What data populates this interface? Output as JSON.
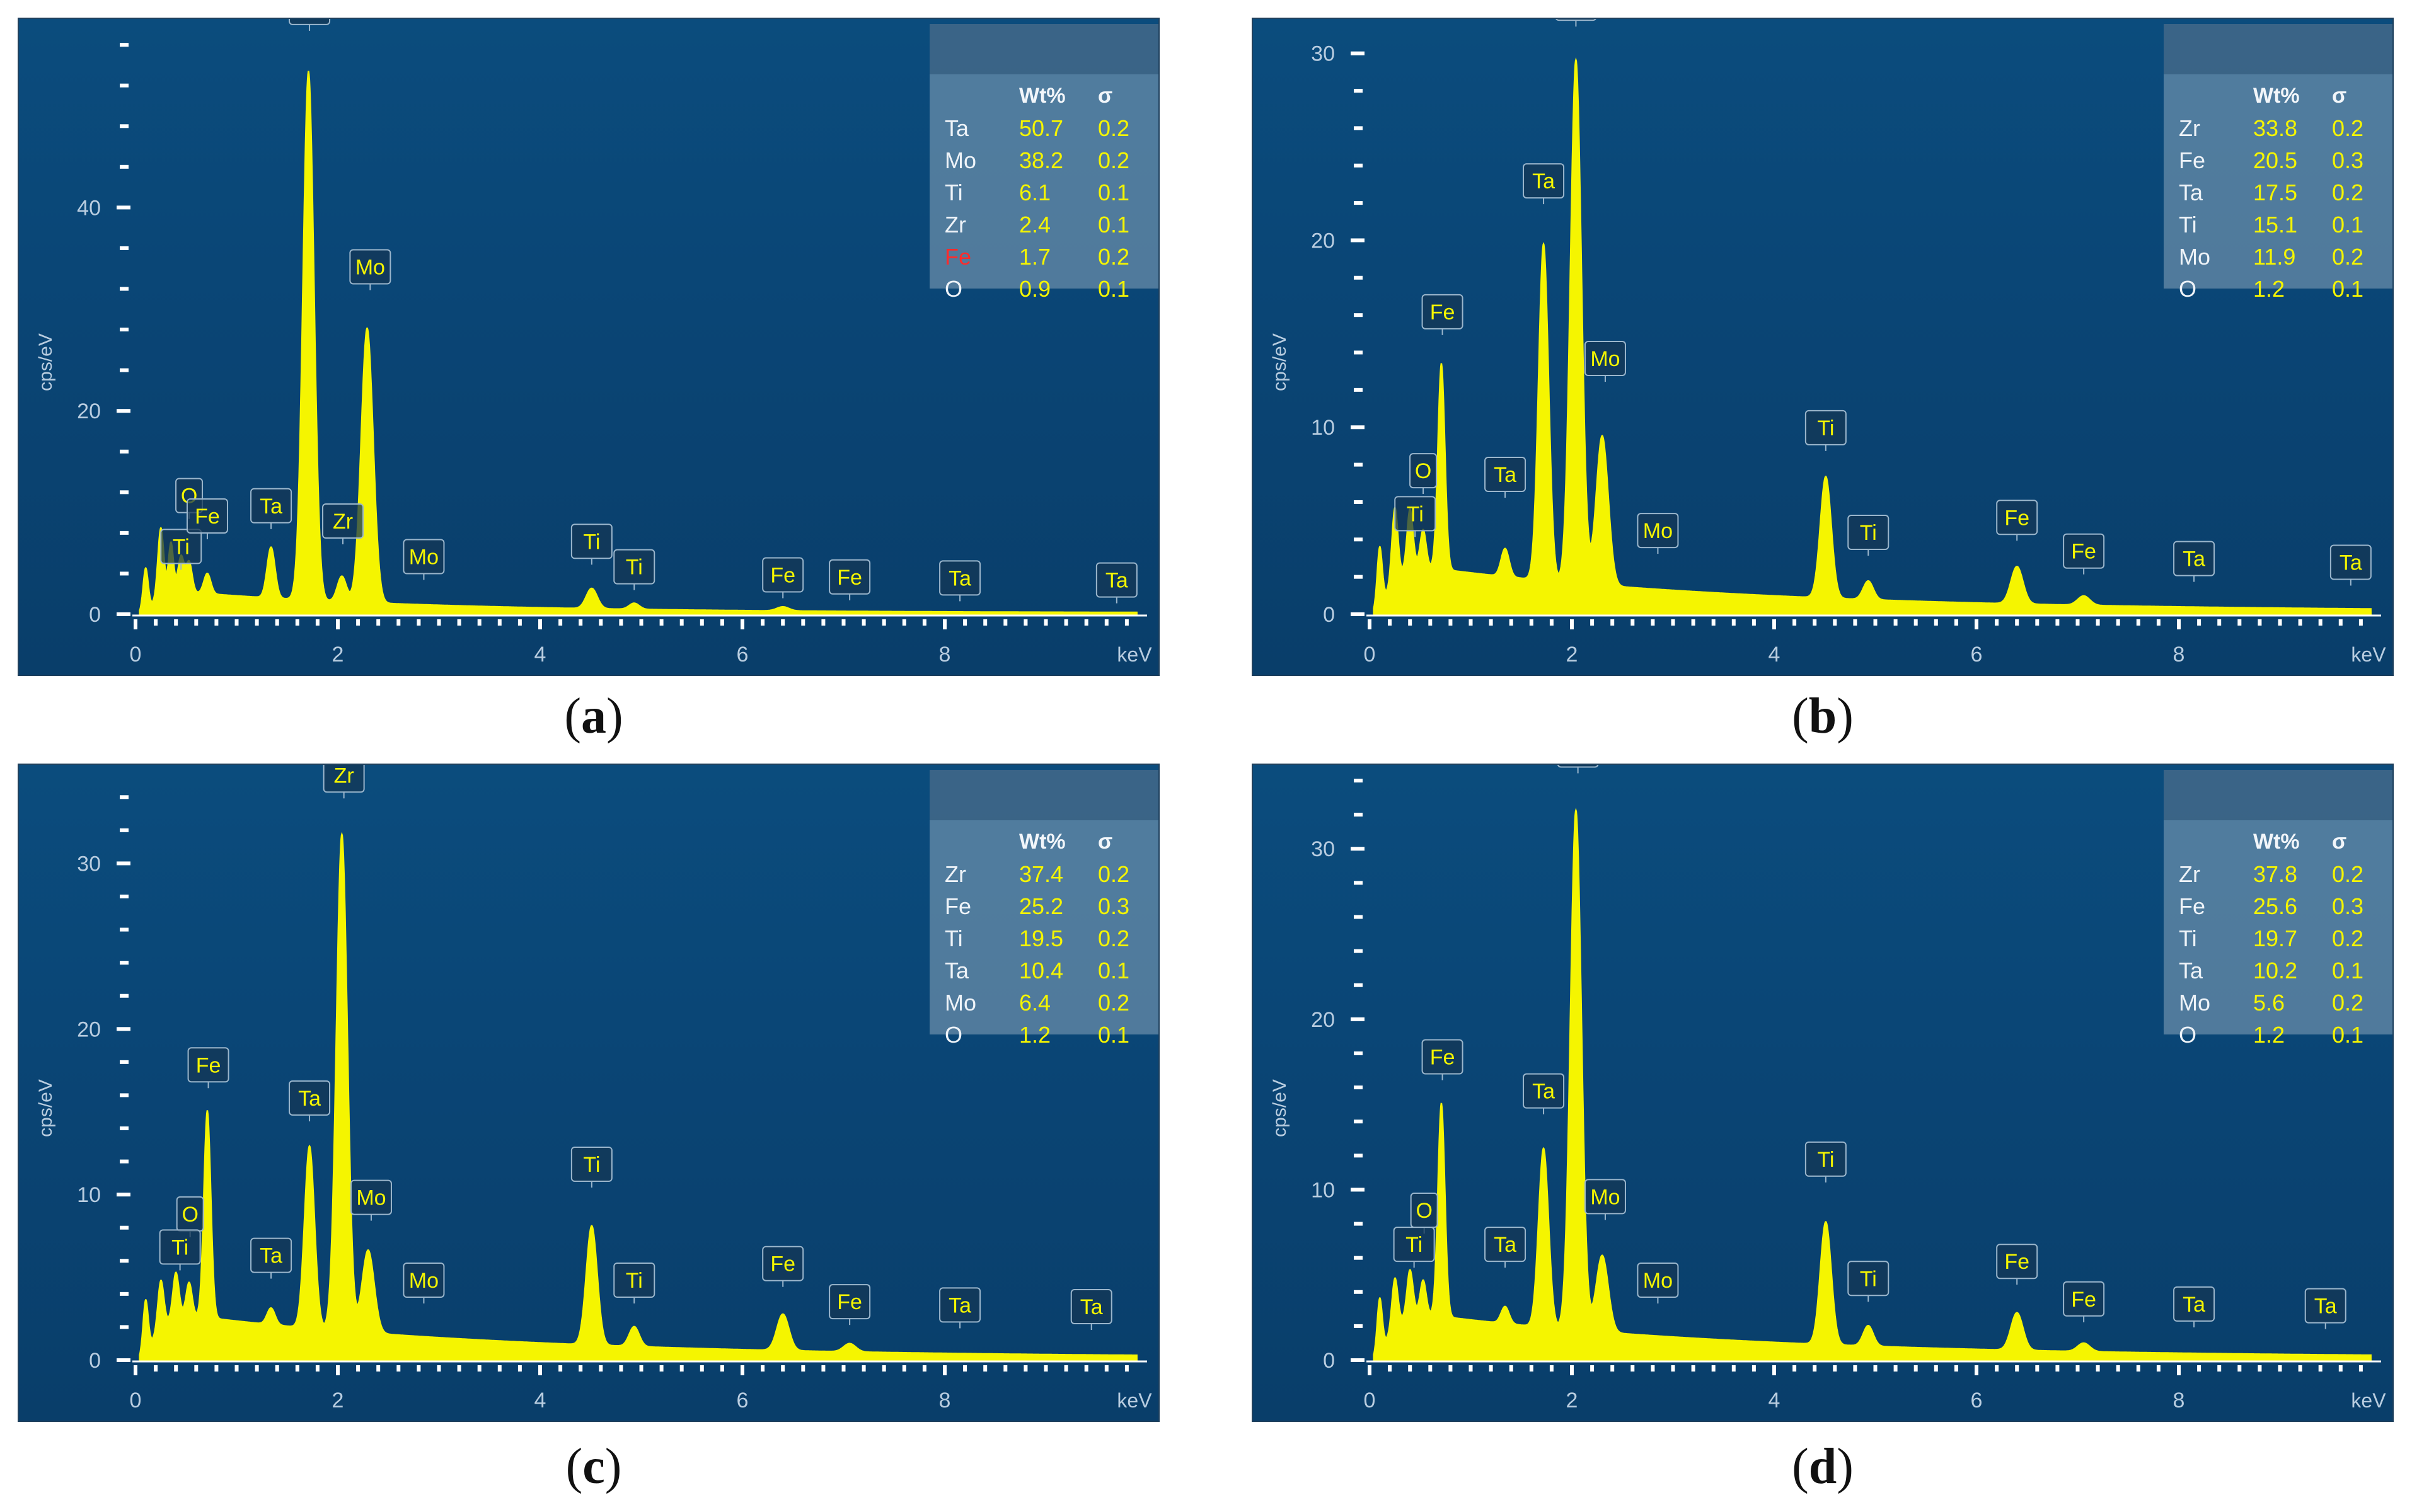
{
  "colors": {
    "panel": "#0a4575",
    "spectrum": "#f5f500",
    "axis_text": "#b9cde0",
    "element_warning": "#ff2b2b"
  },
  "chart_data": [
    {
      "id": "a",
      "type": "area",
      "caption": "a",
      "xlabel": "keV",
      "ylabel": "cps/eV",
      "xlim": [
        0,
        10
      ],
      "ylim": [
        0,
        57
      ],
      "yticks": [
        0,
        20,
        40
      ],
      "xticks": [
        0,
        2,
        4,
        6,
        8
      ],
      "background": 2.5,
      "decay": 0.4,
      "peaks": [
        [
          0.1,
          4,
          0.025
        ],
        [
          0.25,
          7,
          0.03
        ],
        [
          0.35,
          5,
          0.025
        ],
        [
          0.45,
          3.5,
          0.03
        ],
        [
          0.53,
          3,
          0.03
        ],
        [
          0.71,
          2,
          0.035
        ],
        [
          1.34,
          5,
          0.04
        ],
        [
          1.71,
          52,
          0.055
        ],
        [
          2.04,
          2.5,
          0.045
        ],
        [
          2.29,
          27,
          0.06
        ],
        [
          4.51,
          2,
          0.055
        ],
        [
          4.93,
          0.6,
          0.05
        ],
        [
          6.4,
          0.4,
          0.06
        ]
      ],
      "labels": [
        [
          "O",
          0.53,
          9.5
        ],
        [
          "Ti",
          0.45,
          4.5
        ],
        [
          "Fe",
          0.71,
          7.5
        ],
        [
          "Ta",
          1.34,
          8.5
        ],
        [
          "Ta",
          1.72,
          57.5
        ],
        [
          "Zr",
          2.05,
          7
        ],
        [
          "Mo",
          2.32,
          32
        ],
        [
          "Mo",
          2.85,
          3.5
        ],
        [
          "Ti",
          4.51,
          5
        ],
        [
          "Ti",
          4.93,
          2.5
        ],
        [
          "Fe",
          6.4,
          1.7
        ],
        [
          "Fe",
          7.06,
          1.5
        ],
        [
          "Ta",
          8.15,
          1.4
        ],
        [
          "Ta",
          9.7,
          1.2
        ]
      ],
      "table": {
        "headers": [
          "",
          "Wt%",
          "σ"
        ],
        "rows": [
          [
            "Ta",
            "50.7",
            "0.2"
          ],
          [
            "Mo",
            "38.2",
            "0.2"
          ],
          [
            "Ti",
            "6.1",
            "0.1"
          ],
          [
            "Zr",
            "2.4",
            "0.1"
          ],
          [
            "Fe",
            "1.7",
            "0.2"
          ],
          [
            "O",
            "0.9",
            "0.1"
          ]
        ],
        "warn_row": 4
      }
    },
    {
      "id": "b",
      "type": "area",
      "caption": "b",
      "xlabel": "keV",
      "ylabel": "cps/eV",
      "xlim": [
        0,
        10
      ],
      "ylim": [
        0,
        31
      ],
      "yticks": [
        0,
        10,
        20,
        30
      ],
      "xticks": [
        0,
        2,
        4,
        6,
        8
      ],
      "background": 2.8,
      "decay": 0.3,
      "peaks": [
        [
          0.1,
          3,
          0.025
        ],
        [
          0.25,
          4,
          0.03
        ],
        [
          0.4,
          3,
          0.03
        ],
        [
          0.53,
          2,
          0.03
        ],
        [
          0.71,
          11,
          0.035
        ],
        [
          1.34,
          1.5,
          0.04
        ],
        [
          1.72,
          18,
          0.05
        ],
        [
          2.04,
          28,
          0.055
        ],
        [
          2.3,
          8,
          0.06
        ],
        [
          4.51,
          6.5,
          0.055
        ],
        [
          4.93,
          1,
          0.05
        ],
        [
          6.4,
          2,
          0.06
        ],
        [
          7.06,
          0.5,
          0.06
        ]
      ],
      "labels": [
        [
          "O",
          0.53,
          6.5
        ],
        [
          "Ti",
          0.45,
          4.2
        ],
        [
          "Fe",
          0.72,
          15
        ],
        [
          "Ta",
          1.34,
          6.3
        ],
        [
          "Ta",
          1.72,
          22
        ],
        [
          "Zr",
          2.04,
          31.5
        ],
        [
          "Mo",
          2.33,
          12.5
        ],
        [
          "Mo",
          2.85,
          3.3
        ],
        [
          "Ti",
          4.51,
          8.8
        ],
        [
          "Ti",
          4.93,
          3.2
        ],
        [
          "Fe",
          6.4,
          4
        ],
        [
          "Fe",
          7.06,
          2.2
        ],
        [
          "Ta",
          8.15,
          1.8
        ],
        [
          "Ta",
          9.7,
          1.6
        ]
      ],
      "table": {
        "headers": [
          "",
          "Wt%",
          "σ"
        ],
        "rows": [
          [
            "Zr",
            "33.8",
            "0.2"
          ],
          [
            "Fe",
            "20.5",
            "0.3"
          ],
          [
            "Ta",
            "17.5",
            "0.2"
          ],
          [
            "Ti",
            "15.1",
            "0.1"
          ],
          [
            "Mo",
            "11.9",
            "0.2"
          ],
          [
            "O",
            "1.2",
            "0.1"
          ]
        ],
        "warn_row": -1
      }
    },
    {
      "id": "c",
      "type": "area",
      "caption": "c",
      "xlabel": "keV",
      "ylabel": "cps/eV",
      "xlim": [
        0,
        10
      ],
      "ylim": [
        0,
        35
      ],
      "yticks": [
        0,
        10,
        20,
        30
      ],
      "xticks": [
        0,
        2,
        4,
        6,
        8
      ],
      "background": 3,
      "decay": 0.3,
      "peaks": [
        [
          0.1,
          3,
          0.025
        ],
        [
          0.25,
          3,
          0.03
        ],
        [
          0.4,
          2.5,
          0.03
        ],
        [
          0.53,
          2,
          0.03
        ],
        [
          0.71,
          12.5,
          0.035
        ],
        [
          1.34,
          1,
          0.04
        ],
        [
          1.72,
          11,
          0.05
        ],
        [
          2.04,
          30,
          0.055
        ],
        [
          2.3,
          5,
          0.06
        ],
        [
          4.51,
          7.2,
          0.055
        ],
        [
          4.93,
          1.2,
          0.05
        ],
        [
          6.4,
          2.2,
          0.06
        ],
        [
          7.06,
          0.5,
          0.06
        ]
      ],
      "labels": [
        [
          "O",
          0.54,
          7.5
        ],
        [
          "Ti",
          0.44,
          5.5
        ],
        [
          "Fe",
          0.72,
          16.5
        ],
        [
          "Ta",
          1.34,
          5
        ],
        [
          "Ta",
          1.72,
          14.5
        ],
        [
          "Zr",
          2.06,
          34
        ],
        [
          "Mo",
          2.33,
          8.5
        ],
        [
          "Mo",
          2.85,
          3.5
        ],
        [
          "Ti",
          4.51,
          10.5
        ],
        [
          "Ti",
          4.93,
          3.5
        ],
        [
          "Fe",
          6.4,
          4.5
        ],
        [
          "Fe",
          7.06,
          2.2
        ],
        [
          "Ta",
          8.15,
          2
        ],
        [
          "Ta",
          9.45,
          1.9
        ]
      ],
      "table": {
        "headers": [
          "",
          "Wt%",
          "σ"
        ],
        "rows": [
          [
            "Zr",
            "37.4",
            "0.2"
          ],
          [
            "Fe",
            "25.2",
            "0.3"
          ],
          [
            "Ti",
            "19.5",
            "0.2"
          ],
          [
            "Ta",
            "10.4",
            "0.1"
          ],
          [
            "Mo",
            "6.4",
            "0.2"
          ],
          [
            "O",
            "1.2",
            "0.1"
          ]
        ],
        "warn_row": -1
      }
    },
    {
      "id": "d",
      "type": "area",
      "caption": "d",
      "xlabel": "keV",
      "ylabel": "cps/eV",
      "xlim": [
        0,
        10
      ],
      "ylim": [
        0,
        34
      ],
      "yticks": [
        0,
        10,
        20,
        30
      ],
      "xticks": [
        0,
        2,
        4,
        6,
        8
      ],
      "background": 3,
      "decay": 0.3,
      "peaks": [
        [
          0.1,
          3,
          0.025
        ],
        [
          0.25,
          3,
          0.03
        ],
        [
          0.4,
          2.5,
          0.03
        ],
        [
          0.53,
          2,
          0.03
        ],
        [
          0.71,
          12.5,
          0.035
        ],
        [
          1.34,
          1,
          0.04
        ],
        [
          1.72,
          10.5,
          0.05
        ],
        [
          2.04,
          30.5,
          0.055
        ],
        [
          2.3,
          4.5,
          0.06
        ],
        [
          4.51,
          7.2,
          0.055
        ],
        [
          4.93,
          1.2,
          0.05
        ],
        [
          6.4,
          2.2,
          0.06
        ],
        [
          7.06,
          0.5,
          0.06
        ]
      ],
      "labels": [
        [
          "O",
          0.54,
          7.5
        ],
        [
          "Ti",
          0.44,
          5.5
        ],
        [
          "Fe",
          0.72,
          16.5
        ],
        [
          "Ta",
          1.34,
          5.5
        ],
        [
          "Ta",
          1.72,
          14.5
        ],
        [
          "Zr",
          2.06,
          34.5
        ],
        [
          "Mo",
          2.33,
          8.3
        ],
        [
          "Mo",
          2.85,
          3.4
        ],
        [
          "Ti",
          4.51,
          10.5
        ],
        [
          "Ti",
          4.93,
          3.5
        ],
        [
          "Fe",
          6.4,
          4.5
        ],
        [
          "Fe",
          7.06,
          2.3
        ],
        [
          "Ta",
          8.15,
          2
        ],
        [
          "Ta",
          9.45,
          1.9
        ]
      ],
      "table": {
        "headers": [
          "",
          "Wt%",
          "σ"
        ],
        "rows": [
          [
            "Zr",
            "37.8",
            "0.2"
          ],
          [
            "Fe",
            "25.6",
            "0.3"
          ],
          [
            "Ti",
            "19.7",
            "0.2"
          ],
          [
            "Ta",
            "10.2",
            "0.1"
          ],
          [
            "Mo",
            "5.6",
            "0.2"
          ],
          [
            "O",
            "1.2",
            "0.1"
          ]
        ],
        "warn_row": -1
      }
    }
  ]
}
